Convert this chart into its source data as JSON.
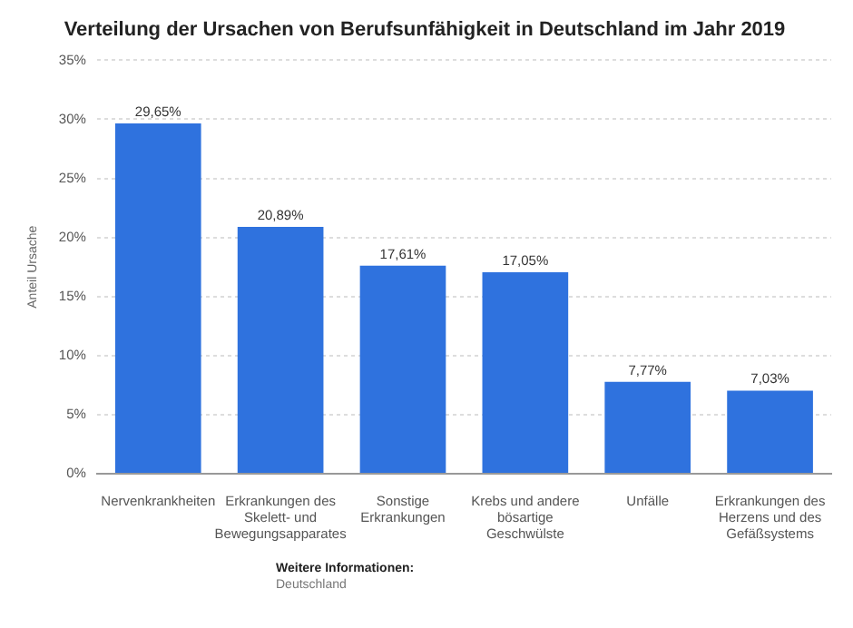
{
  "chart_data": {
    "type": "bar",
    "title": "Verteilung der Ursachen von Berufsunfähigkeit in Deutschland im Jahr 2019",
    "ylabel": "Anteil Ursache",
    "categories": [
      "Nervenkrankheiten",
      "Erkrankungen des Skelett- und Bewegungsapparates",
      "Sonstige Erkrankungen",
      "Krebs und andere bösartige Geschwülste",
      "Unfälle",
      "Erkrankungen des Herzens und des Gefäßsystems"
    ],
    "values": [
      29.65,
      20.89,
      17.61,
      17.05,
      7.77,
      7.03
    ],
    "value_labels": [
      "29,65%",
      "20,89%",
      "17,61%",
      "17,05%",
      "7,77%",
      "7,03%"
    ],
    "color": "#2f72de",
    "ylim": [
      0,
      35
    ],
    "yticks": [
      {
        "value": 0,
        "label": "0%"
      },
      {
        "value": 5,
        "label": "5%"
      },
      {
        "value": 10,
        "label": "10%"
      },
      {
        "value": 15,
        "label": "15%"
      },
      {
        "value": 20,
        "label": "20%"
      },
      {
        "value": 25,
        "label": "25%"
      },
      {
        "value": 30,
        "label": "30%"
      },
      {
        "value": 35,
        "label": "35%"
      }
    ],
    "grid": "y",
    "legend": false,
    "annotations": [
      "Weitere Informationen:",
      "Deutschland"
    ]
  }
}
